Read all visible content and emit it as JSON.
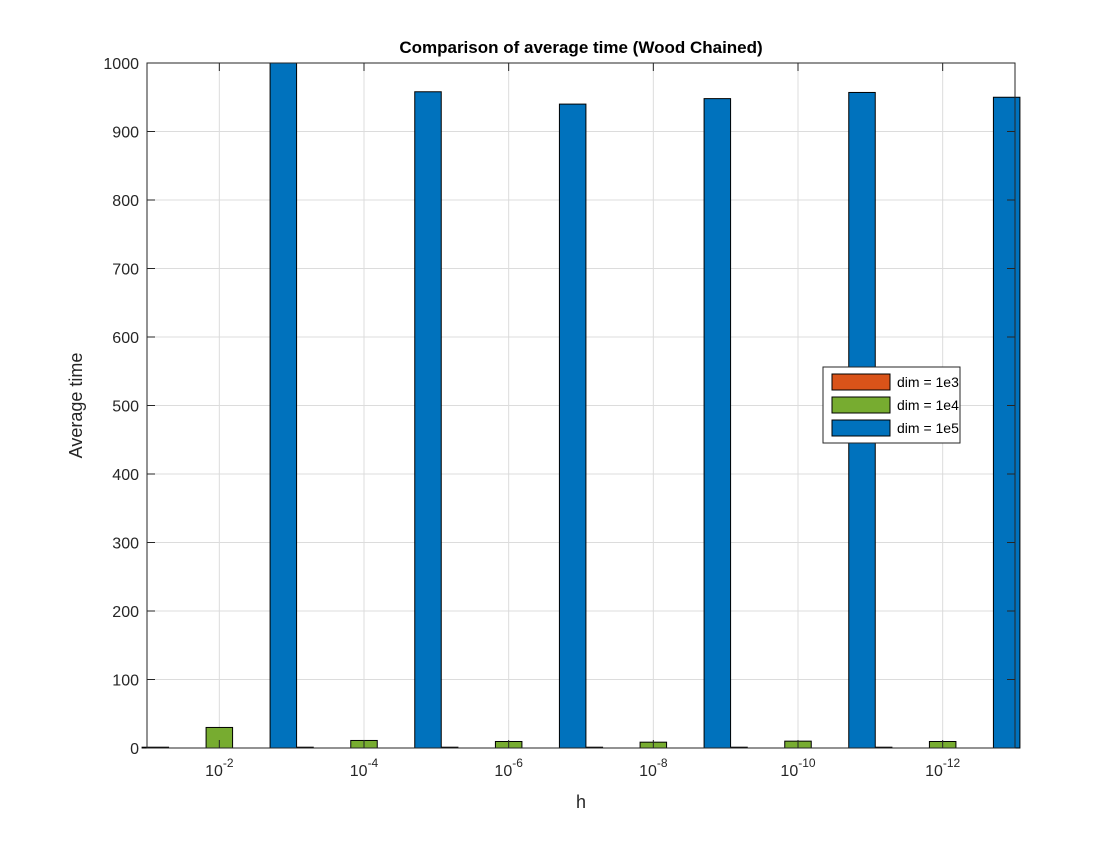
{
  "chart_data": {
    "type": "bar",
    "title": "Comparison of average time (Wood Chained)",
    "xlabel": "h",
    "ylabel": "Average time",
    "categories": [
      {
        "base": "10",
        "exp": "-2"
      },
      {
        "base": "10",
        "exp": "-4"
      },
      {
        "base": "10",
        "exp": "-6"
      },
      {
        "base": "10",
        "exp": "-8"
      },
      {
        "base": "10",
        "exp": "-10"
      },
      {
        "base": "10",
        "exp": "-12"
      }
    ],
    "series": [
      {
        "name": "dim = 1e3",
        "color": "#D95319",
        "values": [
          0.5,
          0.3,
          0.3,
          0.3,
          0.3,
          0.3
        ]
      },
      {
        "name": "dim = 1e4",
        "color": "#77AC30",
        "values": [
          30,
          11,
          9.5,
          8.5,
          10,
          9.5
        ]
      },
      {
        "name": "dim = 1e5",
        "color": "#0072BD",
        "values": [
          1000,
          958,
          940,
          948,
          957,
          950
        ]
      }
    ],
    "ylim": [
      0,
      1000
    ],
    "yticks": [
      0,
      100,
      200,
      300,
      400,
      500,
      600,
      700,
      800,
      900,
      1000
    ],
    "grid": true,
    "legend_position": "right"
  }
}
